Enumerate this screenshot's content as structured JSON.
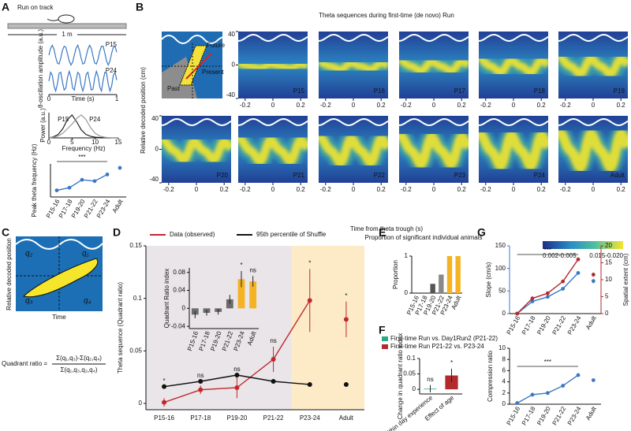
{
  "diagram_a": {
    "panel": "A",
    "label": "Run on track",
    "scale": "1 m"
  },
  "schematic_c": {
    "panel": "C",
    "quadrants": [
      "q₂",
      "q₁",
      "q₃",
      "q₄"
    ],
    "ylabel": "Relative decoded position",
    "xlabel": "Time",
    "formula_label": "Quadrant ratio =",
    "numerator": "Σ(q₁,q₃)-Σ(q₂,q₄)",
    "denominator": "Σ(q₁,q₃,q₂,q₄)"
  },
  "chart_data": [
    {
      "type": "line",
      "ylabel": "θ-oscillation amplitude (a.u.)",
      "xlabel": "Time (s)",
      "xlim": [
        0,
        1
      ],
      "xticks": [
        0,
        1
      ],
      "ylim": [
        -1.2,
        1.2
      ],
      "x": [
        0,
        0.025,
        0.05,
        0.075,
        0.1,
        0.125,
        0.15,
        0.175,
        0.2,
        0.225,
        0.25,
        0.275,
        0.3,
        0.325,
        0.35,
        0.375,
        0.4,
        0.425,
        0.45,
        0.475,
        0.5,
        0.525,
        0.55,
        0.575,
        0.6,
        0.625,
        0.65,
        0.675,
        0.7,
        0.725,
        0.75,
        0.775,
        0.8,
        0.825,
        0.85,
        0.875,
        0.9,
        0.925,
        0.95,
        0.975,
        1
      ],
      "series": [
        {
          "name": "P15",
          "color": "#3a78c4",
          "values": [
            0,
            0.7,
            1,
            0.6,
            -0.2,
            -0.8,
            -0.9,
            -0.3,
            0.5,
            0.9,
            0.8,
            0.1,
            -0.6,
            -1,
            -0.7,
            0,
            0.7,
            1,
            0.5,
            -0.3,
            -0.9,
            -0.8,
            -0.1,
            0.6,
            1,
            0.7,
            -0.1,
            -0.8,
            -0.9,
            -0.4,
            0.4,
            0.9,
            0.9,
            0.2,
            -0.6,
            -1,
            -0.6,
            0.2,
            0.8,
            0.9,
            0.3
          ]
        },
        {
          "name": "P24",
          "color": "#3a78c4",
          "values": [
            0,
            0.9,
            0.6,
            -0.5,
            -1,
            -0.3,
            0.8,
            0.9,
            -0.1,
            -0.9,
            -0.7,
            0.4,
            1,
            0.4,
            -0.7,
            -0.9,
            0.1,
            0.9,
            0.7,
            -0.4,
            -1,
            -0.4,
            0.7,
            0.9,
            0,
            -0.9,
            -0.8,
            0.3,
            1,
            0.5,
            -0.6,
            -1,
            0.1,
            0.9,
            0.8,
            -0.3,
            -1,
            -0.5,
            0.6,
            0.9,
            0.1
          ]
        }
      ]
    },
    {
      "type": "line",
      "ylabel": "Power (a.u.)",
      "xlabel": "Frequency (Hz)",
      "xlim": [
        0,
        15
      ],
      "xticks": [
        0,
        5,
        10,
        15
      ],
      "ylim": [
        0,
        1.1
      ],
      "x": [
        0,
        1,
        2,
        3,
        4,
        5,
        6,
        7,
        8,
        9,
        10,
        11,
        12,
        13,
        14,
        15
      ],
      "series": [
        {
          "name": "P15",
          "color": "#222222",
          "values": [
            0,
            0.05,
            0.15,
            0.4,
            0.8,
            1,
            0.7,
            0.35,
            0.15,
            0.07,
            0.03,
            0.02,
            0.01,
            0,
            0,
            0
          ]
        },
        {
          "name": "P24",
          "color": "#999999",
          "values": [
            0,
            0.03,
            0.08,
            0.2,
            0.4,
            0.6,
            0.85,
            1,
            0.8,
            0.45,
            0.2,
            0.08,
            0.03,
            0.01,
            0,
            0
          ]
        }
      ]
    },
    {
      "type": "line",
      "ylabel": "Peak theta frequency (Hz)",
      "categories": [
        "P15-16",
        "P17-18",
        "P19-20",
        "P21-22",
        "P23-24",
        "Adult"
      ],
      "values": [
        6.0,
        6.2,
        6.8,
        6.7,
        7.2,
        7.7
      ],
      "color": "#3a78c4",
      "ylim": [
        5.5,
        8.0
      ],
      "annotation": "***"
    },
    {
      "type": "heatmap",
      "panel": "B",
      "title": "Theta sequences during first-time (de novo) Run",
      "categories": [
        "P15",
        "P16",
        "P17",
        "P18",
        "P19",
        "P20",
        "P21",
        "P22",
        "P23",
        "P24",
        "Adult"
      ],
      "ylabel": "Relative decoded position (cm)",
      "xlabel": "Time from theta trough (s)",
      "ylim": [
        -40,
        40
      ],
      "yticks": [
        -40,
        0,
        40
      ],
      "xlim": [
        -0.25,
        0.25
      ],
      "xticks": [
        -0.2,
        0,
        0.2
      ],
      "colorbar_labels": [
        "0.002-0.005",
        "0.015-0.020"
      ],
      "inset_labels": [
        "Future",
        "Present",
        "Past"
      ]
    },
    {
      "type": "line",
      "panel": "D",
      "ylabel": "Theta sequence (Quadrant ratio)",
      "categories": [
        "P15-16",
        "P17-18",
        "P19-20",
        "P21-22",
        "P23-24",
        "Adult"
      ],
      "ylim": [
        -0.006,
        0.15
      ],
      "yticks": [
        0,
        0.05,
        0.1,
        0.15
      ],
      "series": [
        {
          "name": "Data (observed)",
          "color": "#c0282d",
          "values": [
            0.001,
            0.013,
            0.015,
            0.042,
            0.098,
            0.08
          ],
          "errors": [
            0.004,
            0.004,
            0.01,
            0.012,
            0.03,
            0.017
          ]
        },
        {
          "name": "95th percentile of Shuffle",
          "color": "#111111",
          "values": [
            0.016,
            0.021,
            0.027,
            0.021,
            0.018,
            0.018
          ]
        }
      ],
      "annotations": [
        "*",
        "ns",
        "ns",
        "ns",
        "*",
        "*"
      ]
    },
    {
      "type": "bar",
      "ylabel": "Quadrant Ratio index",
      "categories": [
        "P15-16",
        "P17-18",
        "P19-20",
        "P21-22",
        "P23-24",
        "Adult"
      ],
      "values": [
        -0.014,
        -0.01,
        -0.008,
        0.02,
        0.065,
        0.06
      ],
      "errors": [
        0.008,
        0.006,
        0.006,
        0.01,
        0.018,
        0.012
      ],
      "colors": [
        "#6b6b6b",
        "#6b6b6b",
        "#6b6b6b",
        "#6b6b6b",
        "#f5b324",
        "#f5b324"
      ],
      "ylim": [
        -0.045,
        0.09
      ],
      "yticks": [
        -0.04,
        0,
        0.04,
        0.08
      ],
      "annotations": [
        null,
        null,
        null,
        null,
        "*",
        "ns"
      ]
    },
    {
      "type": "bar",
      "panel": "E",
      "title": "Proportion of significant individual animals",
      "ylabel": "Proportion",
      "categories": [
        "P15-16",
        "P17-18",
        "P19-20",
        "P21-22",
        "P23-24",
        "Adult"
      ],
      "values": [
        0,
        0,
        0.25,
        0.5,
        1,
        1
      ],
      "colors": [
        "#555555",
        "#555555",
        "#555555",
        "#888888",
        "#f5b324",
        "#f5b324"
      ],
      "ylim": [
        0,
        1
      ],
      "yticks": [
        0,
        1
      ]
    },
    {
      "type": "bar",
      "panel": "F",
      "ylabel": "Change in quadrant ratio index",
      "categories": [
        "Within day experience",
        "Effect of age"
      ],
      "series": [
        {
          "name": "First-time Run vs. Day1Run2 (P21-22)",
          "color": "#2aa88a",
          "values": [
            0.002,
            null
          ],
          "errors": [
            0.012,
            null
          ]
        },
        {
          "name": "First-time Run P21-22 vs. P23-24",
          "color": "#b22a2e",
          "values": [
            null,
            0.045
          ],
          "errors": [
            null,
            0.022
          ]
        }
      ],
      "ylim": [
        -0.015,
        0.1
      ],
      "yticks": [
        0,
        0.05,
        0.1
      ],
      "annotations": [
        "ns",
        "*"
      ]
    },
    {
      "type": "line",
      "panel": "G",
      "ylabel": "Slope (cm/s)",
      "y2label": "Spatial extent (cm)",
      "categories": [
        "P15-16",
        "P17-18",
        "P19-20",
        "P21-22",
        "P23-24",
        "Adult"
      ],
      "ylim": [
        0,
        150
      ],
      "yticks": [
        0,
        50,
        100,
        150
      ],
      "y2lim": [
        0,
        20
      ],
      "y2ticks": [
        0,
        5,
        10,
        15,
        20
      ],
      "series": [
        {
          "name": "Slope (cm/s)",
          "color": "#3a78c4",
          "values": [
            0,
            27,
            37,
            55,
            90,
            72
          ],
          "errors": [
            1,
            2,
            2,
            3,
            3,
            5
          ]
        },
        {
          "name": "Spatial extent (cm)",
          "color": "#b22a2e",
          "axis": "y2",
          "values": [
            0,
            4.5,
            6,
            9.5,
            16,
            11.5
          ],
          "errors": [
            0.2,
            0.3,
            0.3,
            0.4,
            0.4,
            0.6
          ]
        }
      ],
      "annotation": "***"
    },
    {
      "type": "line",
      "ylabel": "Compression ratio",
      "categories": [
        "P15-16",
        "P17-18",
        "P19-20",
        "P21-22",
        "P23-24",
        "Adult"
      ],
      "values": [
        0.2,
        1.7,
        2.0,
        3.3,
        5.2,
        4.3
      ],
      "errors": [
        0.05,
        0.1,
        0.1,
        0.15,
        0.15,
        0.2
      ],
      "color": "#3a78c4",
      "ylim": [
        0,
        10
      ],
      "yticks": [
        0,
        2,
        4,
        6,
        8,
        10
      ],
      "annotation": "***"
    }
  ]
}
